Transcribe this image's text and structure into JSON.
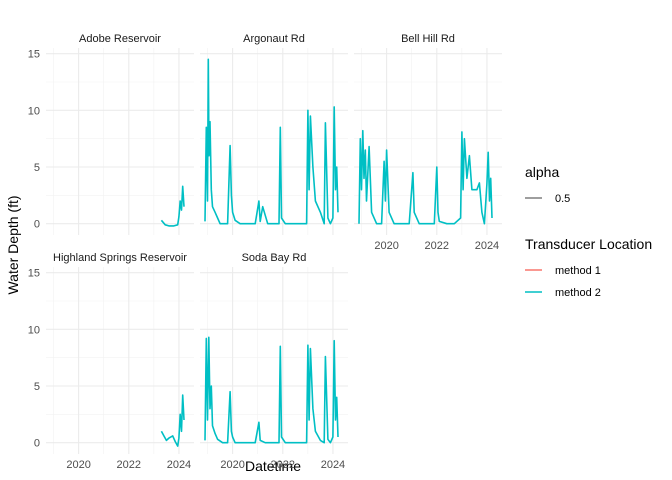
{
  "chart_data": {
    "type": "line",
    "title": "",
    "xlabel": "Datetime",
    "ylabel": "Water Depth (ft)",
    "x_ticks": [
      "2020",
      "2022",
      "2024"
    ],
    "y_ticks": [
      "0",
      "5",
      "10",
      "15"
    ],
    "ylim": [
      -1,
      15.5
    ],
    "xlim": [
      2018.7,
      2024.6
    ],
    "legend_placement": "right",
    "legends": [
      {
        "title": "alpha",
        "entries": [
          {
            "label": "0.5",
            "color": "#7f7f7f"
          }
        ]
      },
      {
        "title": "Transducer Location",
        "entries": [
          {
            "label": "method 1",
            "color": "#F8766D"
          },
          {
            "label": "method 2",
            "color": "#00BFC4"
          }
        ]
      }
    ],
    "panels": [
      {
        "name": "Adobe Reservoir",
        "row": 0,
        "col": 0,
        "show_x_axis": false,
        "series": [
          {
            "name": "method 2",
            "x": [
              2023.3,
              2023.45,
              2023.6,
              2023.8,
              2023.95,
              2024.0,
              2024.05,
              2024.1,
              2024.15,
              2024.2
            ],
            "y": [
              0.3,
              -0.1,
              -0.2,
              -0.2,
              -0.1,
              0.6,
              2.0,
              1.2,
              3.3,
              1.5
            ]
          }
        ]
      },
      {
        "name": "Argonaut Rd",
        "row": 0,
        "col": 1,
        "show_x_axis": false,
        "series": [
          {
            "name": "method 2",
            "x": [
              2018.9,
              2018.95,
              2019.0,
              2019.03,
              2019.06,
              2019.1,
              2019.15,
              2019.2,
              2019.3,
              2019.4,
              2019.5,
              2019.8,
              2019.9,
              2019.95,
              2020.0,
              2020.1,
              2020.3,
              2020.6,
              2020.9,
              2021.05,
              2021.1,
              2021.2,
              2021.4,
              2021.6,
              2021.85,
              2021.9,
              2021.95,
              2022.1,
              2022.4,
              2022.7,
              2022.95,
              2023.0,
              2023.05,
              2023.1,
              2023.2,
              2023.3,
              2023.5,
              2023.65,
              2023.7,
              2023.8,
              2023.9,
              2024.0,
              2024.05,
              2024.1,
              2024.15,
              2024.2
            ],
            "y": [
              0.2,
              8.5,
              2.0,
              14.5,
              6.0,
              9.0,
              3.0,
              1.5,
              1.0,
              0.5,
              0.0,
              0.0,
              6.9,
              2.5,
              1.0,
              0.3,
              0.0,
              0.0,
              0.0,
              2.0,
              0.2,
              1.5,
              0.0,
              0.0,
              0.0,
              8.5,
              0.5,
              0.0,
              0.0,
              0.0,
              0.0,
              10.0,
              3.0,
              9.5,
              5.0,
              2.0,
              1.0,
              0.0,
              8.9,
              0.5,
              0.0,
              0.5,
              10.3,
              3.0,
              5.0,
              1.0
            ]
          }
        ]
      },
      {
        "name": "Bell Hill Rd",
        "row": 0,
        "col": 2,
        "show_x_axis": true,
        "series": [
          {
            "name": "method 2",
            "x": [
              2018.9,
              2018.95,
              2019.0,
              2019.05,
              2019.1,
              2019.15,
              2019.2,
              2019.3,
              2019.4,
              2019.6,
              2019.8,
              2019.9,
              2019.95,
              2020.0,
              2020.1,
              2020.3,
              2020.6,
              2020.9,
              2021.05,
              2021.1,
              2021.3,
              2021.6,
              2021.9,
              2022.0,
              2022.05,
              2022.1,
              2022.4,
              2022.7,
              2022.95,
              2023.0,
              2023.05,
              2023.1,
              2023.2,
              2023.3,
              2023.4,
              2023.6,
              2023.7,
              2023.8,
              2023.9,
              2024.0,
              2024.05,
              2024.1,
              2024.15,
              2024.2
            ],
            "y": [
              0.0,
              7.5,
              3.0,
              8.2,
              4.0,
              6.5,
              2.0,
              6.8,
              1.0,
              0.0,
              0.0,
              5.5,
              2.0,
              6.5,
              1.0,
              0.0,
              0.0,
              0.0,
              4.5,
              1.0,
              0.0,
              0.0,
              0.0,
              5.0,
              1.0,
              0.2,
              0.0,
              0.0,
              0.5,
              8.1,
              3.0,
              7.5,
              4.0,
              6.0,
              3.0,
              3.0,
              3.6,
              1.0,
              0.0,
              3.5,
              6.3,
              2.0,
              4.0,
              0.5
            ]
          }
        ]
      },
      {
        "name": "Highland Springs Reservoir",
        "row": 1,
        "col": 0,
        "show_x_axis": true,
        "series": [
          {
            "name": "method 2",
            "x": [
              2023.3,
              2023.4,
              2023.5,
              2023.6,
              2023.75,
              2023.85,
              2023.95,
              2024.0,
              2024.05,
              2024.1,
              2024.15,
              2024.2
            ],
            "y": [
              1.0,
              0.6,
              0.2,
              0.4,
              0.6,
              0.1,
              -0.3,
              0.4,
              2.5,
              1.0,
              4.2,
              2.0
            ]
          }
        ]
      },
      {
        "name": "Soda Bay Rd",
        "row": 1,
        "col": 1,
        "show_x_axis": true,
        "series": [
          {
            "name": "method 2",
            "x": [
              2018.9,
              2018.95,
              2019.0,
              2019.05,
              2019.1,
              2019.15,
              2019.2,
              2019.3,
              2019.4,
              2019.6,
              2019.8,
              2019.9,
              2019.95,
              2020.0,
              2020.1,
              2020.3,
              2020.6,
              2020.9,
              2021.05,
              2021.1,
              2021.3,
              2021.6,
              2021.85,
              2021.9,
              2021.95,
              2022.1,
              2022.4,
              2022.7,
              2022.95,
              2023.0,
              2023.05,
              2023.1,
              2023.2,
              2023.3,
              2023.5,
              2023.65,
              2023.7,
              2023.8,
              2023.9,
              2024.0,
              2024.05,
              2024.1,
              2024.15,
              2024.2
            ],
            "y": [
              0.2,
              9.2,
              2.0,
              9.3,
              3.0,
              5.0,
              1.5,
              0.8,
              0.3,
              0.0,
              0.0,
              4.5,
              1.0,
              0.5,
              0.0,
              0.0,
              0.0,
              0.0,
              1.8,
              0.2,
              0.0,
              0.0,
              0.0,
              8.5,
              0.5,
              0.0,
              0.0,
              0.0,
              0.0,
              8.6,
              2.0,
              8.3,
              3.0,
              1.0,
              0.2,
              0.0,
              7.6,
              0.3,
              0.0,
              0.5,
              9.0,
              2.0,
              4.0,
              0.5
            ]
          }
        ]
      }
    ]
  }
}
